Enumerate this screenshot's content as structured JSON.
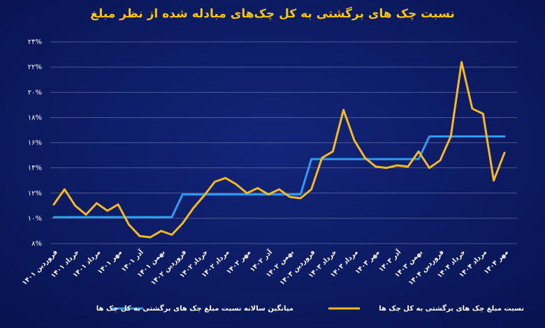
{
  "chart_data": {
    "type": "line",
    "title": "نسبت چک های برگشتی به کل چک‌های مبادله شده از نظر مبلغ",
    "categories": [
      "فروردین ۱۴۰۱",
      null,
      "خرداد ۱۴۰۱",
      null,
      "مرداد ۱۴۰۱",
      null,
      "مهر ۱۴۰۱",
      null,
      "آذر ۱۴۰۱",
      null,
      "بهمن ۱۴۰۱",
      null,
      "فروردین ۱۴۰۲",
      null,
      "خرداد ۱۴۰۲",
      null,
      "مرداد ۱۴۰۲",
      null,
      "مهر ۱۴۰۲",
      null,
      "آذر ۱۴۰۲",
      null,
      "بهمن ۱۴۰۲",
      null,
      "فروردین ۱۴۰۳",
      null,
      "خرداد ۱۴۰۳",
      null,
      "مرداد ۱۴۰۳",
      null,
      "مهر ۱۴۰۳",
      null,
      "آذر ۱۴۰۳",
      null,
      "بهمن ۱۴۰۳",
      null,
      "فروردین ۱۴۰۴",
      null,
      "خرداد ۱۴۰۴",
      null,
      "مرداد ۱۴۰۴",
      null,
      "مهر ۱۴۰۴"
    ],
    "series": [
      {
        "name": "نسبت مبلغ چک های برگشتی به کل چک ها",
        "color": "#f5b921",
        "values": [
          11.1,
          12.3,
          11.0,
          10.3,
          11.2,
          10.6,
          11.1,
          9.5,
          8.6,
          8.5,
          9.0,
          8.7,
          9.6,
          10.8,
          11.8,
          12.9,
          13.2,
          12.7,
          12.0,
          12.4,
          11.9,
          12.3,
          11.7,
          11.6,
          12.3,
          14.8,
          15.3,
          18.6,
          16.2,
          14.8,
          14.1,
          14.0,
          14.2,
          14.1,
          15.3,
          14.0,
          14.6,
          16.5,
          22.4,
          18.7,
          18.3,
          13.0,
          15.2
        ]
      },
      {
        "name": "میانگین سالانه نسبت مبلغ چک های برگشتی به کل چک ها",
        "color": "#2f9cf0",
        "values": [
          10.1,
          10.1,
          10.1,
          10.1,
          10.1,
          10.1,
          10.1,
          10.1,
          10.1,
          10.1,
          10.1,
          10.1,
          11.9,
          11.9,
          11.9,
          11.9,
          11.9,
          11.9,
          11.9,
          11.9,
          11.9,
          11.9,
          11.9,
          11.9,
          14.7,
          14.7,
          14.7,
          14.7,
          14.7,
          14.7,
          14.7,
          14.7,
          14.7,
          14.7,
          14.7,
          16.5,
          16.5,
          16.5,
          16.5,
          16.5,
          16.5,
          16.5,
          16.5
        ]
      }
    ],
    "ylim": [
      8,
      24
    ],
    "yticks": [
      {
        "value": 8,
        "label": "۸%"
      },
      {
        "value": 10,
        "label": "۱۰%"
      },
      {
        "value": 12,
        "label": "۱۲%"
      },
      {
        "value": 14,
        "label": "۱۴%"
      },
      {
        "value": 16,
        "label": "۱۶%"
      },
      {
        "value": 18,
        "label": "۱۸%"
      },
      {
        "value": 20,
        "label": "۲۰%"
      },
      {
        "value": 22,
        "label": "۲۲%"
      },
      {
        "value": 24,
        "label": "۲۴%"
      }
    ],
    "grid": true
  }
}
